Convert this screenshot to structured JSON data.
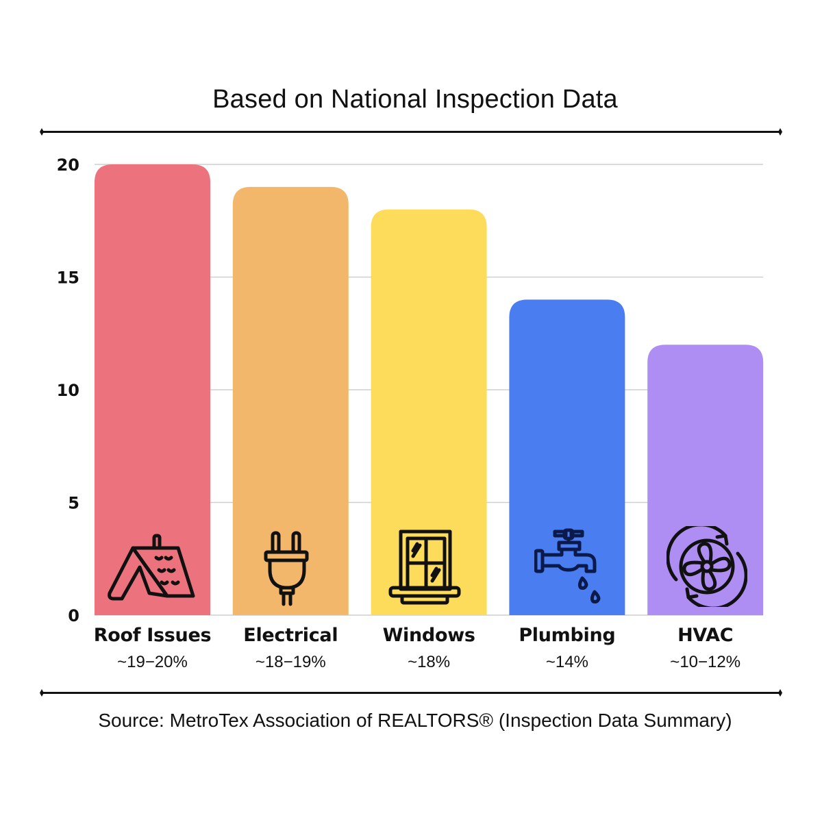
{
  "chart_data": {
    "type": "bar",
    "title": "Based on National Inspection Data",
    "xlabel": "",
    "ylabel": "",
    "ylim": [
      0,
      20
    ],
    "yticks": [
      "0",
      "5",
      "10",
      "15",
      "20"
    ],
    "grid": true,
    "categories": [
      "Roof Issues",
      "Electrical",
      "Windows",
      "Plumbing",
      "HVAC"
    ],
    "values": [
      20,
      19,
      18,
      14,
      12
    ],
    "value_labels": [
      "~19−20%",
      "~18−19%",
      "~18%",
      "~14%",
      "~10−12%"
    ],
    "colors": [
      "#ec737d",
      "#f2b76b",
      "#fddc5c",
      "#4a7ef0",
      "#ae8ef2"
    ],
    "icons": [
      "roof-icon",
      "plug-icon",
      "window-icon",
      "faucet-icon",
      "fan-icon"
    ],
    "source": "Source: MetroTex Association of REALTORS® (Inspection Data Summary)"
  }
}
